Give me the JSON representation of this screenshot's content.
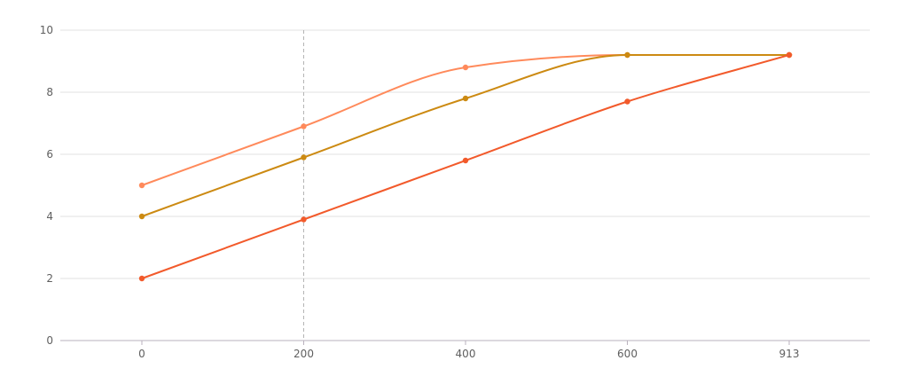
{
  "chart_data": {
    "type": "line",
    "x": [
      "0",
      "200",
      "400",
      "600",
      "913"
    ],
    "ylim": [
      0,
      10
    ],
    "yticks": [
      0,
      2,
      4,
      6,
      8,
      10
    ],
    "grid": true,
    "hover_index": 1,
    "series": [
      {
        "values": [
          5,
          6.9,
          8.8,
          9.2,
          9.2
        ],
        "color": "#ff8a5b",
        "curve": "smooth"
      },
      {
        "values": [
          4,
          5.9,
          7.8,
          9.2,
          9.2
        ],
        "color": "#cc8a12",
        "curve": "smooth"
      },
      {
        "values": [
          2,
          3.9,
          5.8,
          7.7,
          9.2
        ],
        "color": "#f25a2b",
        "curve": "smooth"
      }
    ]
  }
}
